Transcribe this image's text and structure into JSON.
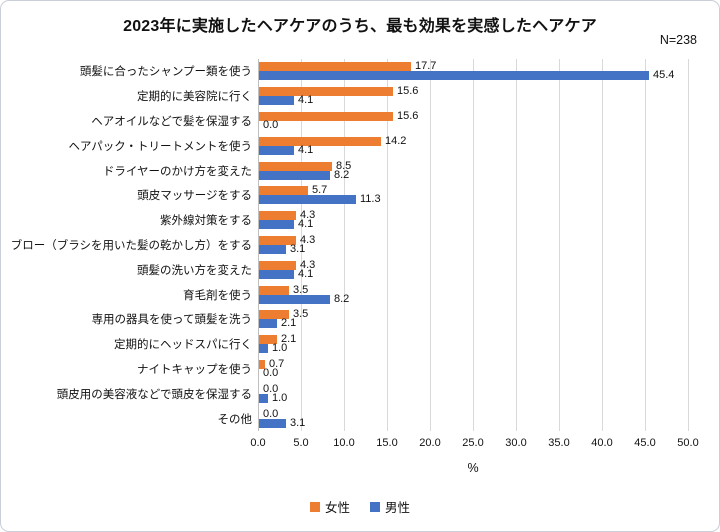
{
  "chart_data": {
    "type": "bar",
    "orientation": "horizontal",
    "title": "2023年に実施したヘアケアのうち、最も効果を実感したヘアケア",
    "n_label": "N=238",
    "categories": [
      "頭髪に合ったシャンプー類を使う",
      "定期的に美容院に行く",
      "ヘアオイルなどで髪を保湿する",
      "ヘアパック・トリートメントを使う",
      "ドライヤーのかけ方を変えた",
      "頭皮マッサージをする",
      "紫外線対策をする",
      "ブロー（ブラシを用いた髪の乾かし方）をする",
      "頭髪の洗い方を変えた",
      "育毛剤を使う",
      "専用の器具を使って頭髪を洗う",
      "定期的にヘッドスパに行く",
      "ナイトキャップを使う",
      "頭皮用の美容液などで頭皮を保湿する",
      "その他"
    ],
    "series": [
      {
        "name": "女性",
        "key": "female",
        "color": "#ED7D31",
        "values": [
          17.7,
          15.6,
          15.6,
          14.2,
          8.5,
          5.7,
          4.3,
          4.3,
          4.3,
          3.5,
          3.5,
          2.1,
          0.7,
          0.0,
          0.0
        ]
      },
      {
        "name": "男性",
        "key": "male",
        "color": "#4472C4",
        "values": [
          45.4,
          4.1,
          0.0,
          4.1,
          8.2,
          11.3,
          4.1,
          3.1,
          4.1,
          8.2,
          2.1,
          1.0,
          0.0,
          1.0,
          3.1
        ]
      }
    ],
    "xlabel": "%",
    "xlim": [
      0,
      50
    ],
    "xtick_step": 5,
    "xticks": [
      "0.0",
      "5.0",
      "10.0",
      "15.0",
      "20.0",
      "25.0",
      "30.0",
      "35.0",
      "40.0",
      "45.0",
      "50.0"
    ],
    "grid": true,
    "legend_position": "bottom",
    "gridline_color": "#D9D9D9",
    "axis_line_color": "#BFBFBF",
    "value_label_decimals": 1
  }
}
